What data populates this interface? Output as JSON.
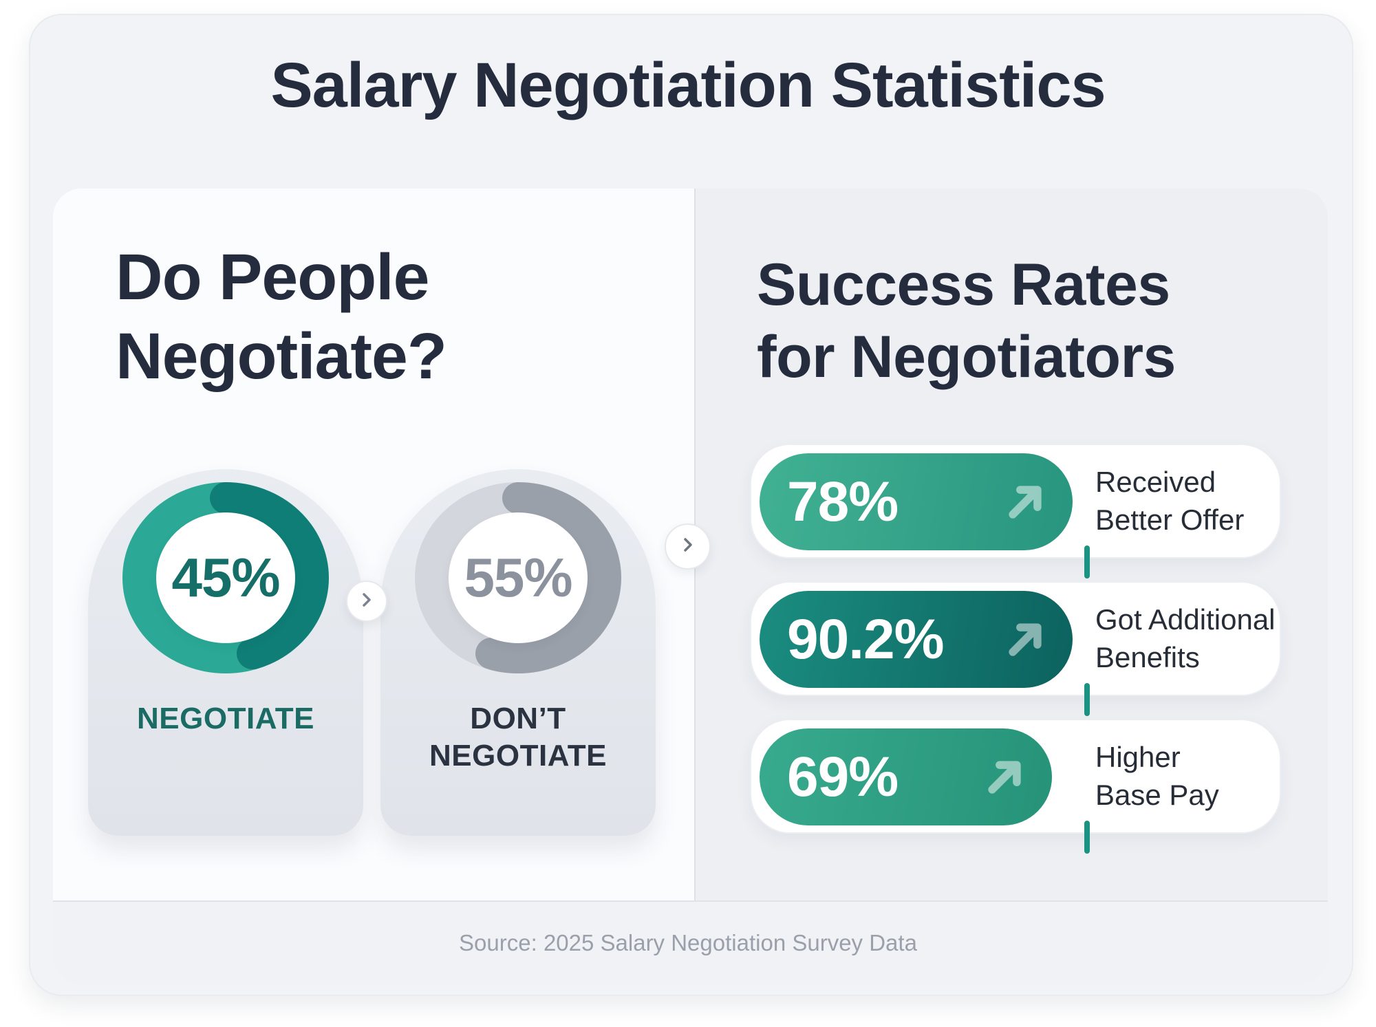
{
  "title": "Salary Negotiation Statistics",
  "left_panel": {
    "heading": "Do People\nNegotiate?",
    "donuts": [
      {
        "value": 45,
        "value_label": "45%",
        "label": "NEGOTIATE",
        "colors": {
          "dark": "#0f7e76",
          "light": "#2ba996",
          "value_text": "#156f68",
          "label_text": "#1a6b64"
        }
      },
      {
        "value": 55,
        "value_label": "55%",
        "label": "DON’T\nNEGOTIATE",
        "colors": {
          "dark": "#99a0aa",
          "light": "#d3d6dc",
          "value_text": "#8b929d",
          "label_text": "#2b3341"
        }
      }
    ]
  },
  "right_panel": {
    "heading": "Success Rates\nfor Negotiators",
    "stats": [
      {
        "value": 78,
        "value_label": "78%",
        "label": "Received\nBetter Offer",
        "gradient": [
          "#41b193",
          "#28957f"
        ]
      },
      {
        "value": 90.2,
        "value_label": "90.2%",
        "label": "Got Additional\nBenefits",
        "gradient": [
          "#1b8d80",
          "#0c625e"
        ]
      },
      {
        "value": 69,
        "value_label": "69%",
        "label": "Higher\nBase Pay",
        "gradient": [
          "#38aa8d",
          "#269379"
        ]
      }
    ]
  },
  "footer": {
    "source": "Source: 2025 Salary Negotiation Survey Data"
  },
  "icons": {
    "chevron": "chevron-right-icon",
    "arrow": "arrow-up-right-icon"
  },
  "colors": {
    "accent_teal": "#1a9383",
    "heading_text": "#252c3e",
    "panel_left_bg": "#fbfcfe",
    "panel_right_bg": "#edeff3",
    "outer_card_bg": "#f1f3f6",
    "footer_text": "#9aa0ab"
  },
  "chart_data": [
    {
      "type": "pie",
      "title": "Do People Negotiate?",
      "labels": [
        "Negotiate",
        "Don't Negotiate"
      ],
      "values": [
        45,
        55
      ],
      "unit": "%",
      "colors": [
        "#0f7e76",
        "#99a0aa"
      ],
      "style": "donut"
    },
    {
      "type": "bar",
      "title": "Success Rates for Negotiators",
      "categories": [
        "Received Better Offer",
        "Got Additional Benefits",
        "Higher Base Pay"
      ],
      "values": [
        78,
        90.2,
        69
      ],
      "unit": "%",
      "orientation": "horizontal",
      "annotations": [
        "78%",
        "90.2%",
        "69%"
      ]
    }
  ]
}
